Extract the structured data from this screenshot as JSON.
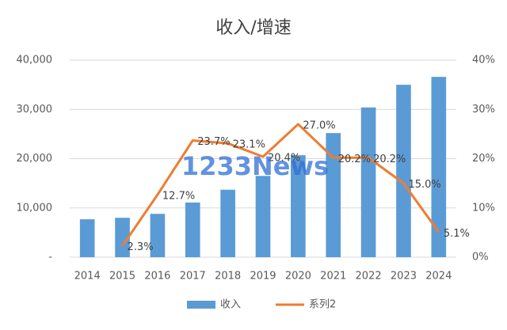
{
  "chart_data": {
    "type": "bar-line",
    "title": "收入/增速",
    "watermark": "1233News",
    "categories": [
      "2014",
      "2015",
      "2016",
      "2017",
      "2018",
      "2019",
      "2020",
      "2021",
      "2022",
      "2023",
      "2024"
    ],
    "series": [
      {
        "name": "收入",
        "type": "bar",
        "color": "#5b9bd5",
        "values": [
          7700,
          8000,
          8800,
          11100,
          13700,
          16500,
          20700,
          25200,
          30400,
          35000,
          36600
        ]
      },
      {
        "name": "系列2",
        "type": "line",
        "axis": "y2",
        "color": "#ed7d31",
        "values": [
          null,
          2.3,
          12.7,
          23.7,
          23.1,
          20.4,
          27.0,
          20.2,
          20.2,
          15.0,
          5.1
        ],
        "value_labels": [
          null,
          "2.3%",
          "12.7%",
          "23.7%",
          "23.1%",
          "20.4%",
          "27.0%",
          "20.2%",
          "20.2%",
          "15.0%",
          "5.1%"
        ]
      }
    ],
    "ylim": [
      0,
      40000
    ],
    "yticks": [
      {
        "value": 0,
        "label": "-"
      },
      {
        "value": 10000,
        "label": "10,000"
      },
      {
        "value": 20000,
        "label": "20,000"
      },
      {
        "value": 30000,
        "label": "30,000"
      },
      {
        "value": 40000,
        "label": "40,000"
      }
    ],
    "y2lim": [
      0,
      40
    ],
    "y2ticks": [
      {
        "value": 0,
        "label": "0%"
      },
      {
        "value": 10,
        "label": "10%"
      },
      {
        "value": 20,
        "label": "20%"
      },
      {
        "value": 30,
        "label": "30%"
      },
      {
        "value": 40,
        "label": "40%"
      }
    ],
    "grid": true,
    "legend": "bottom"
  }
}
